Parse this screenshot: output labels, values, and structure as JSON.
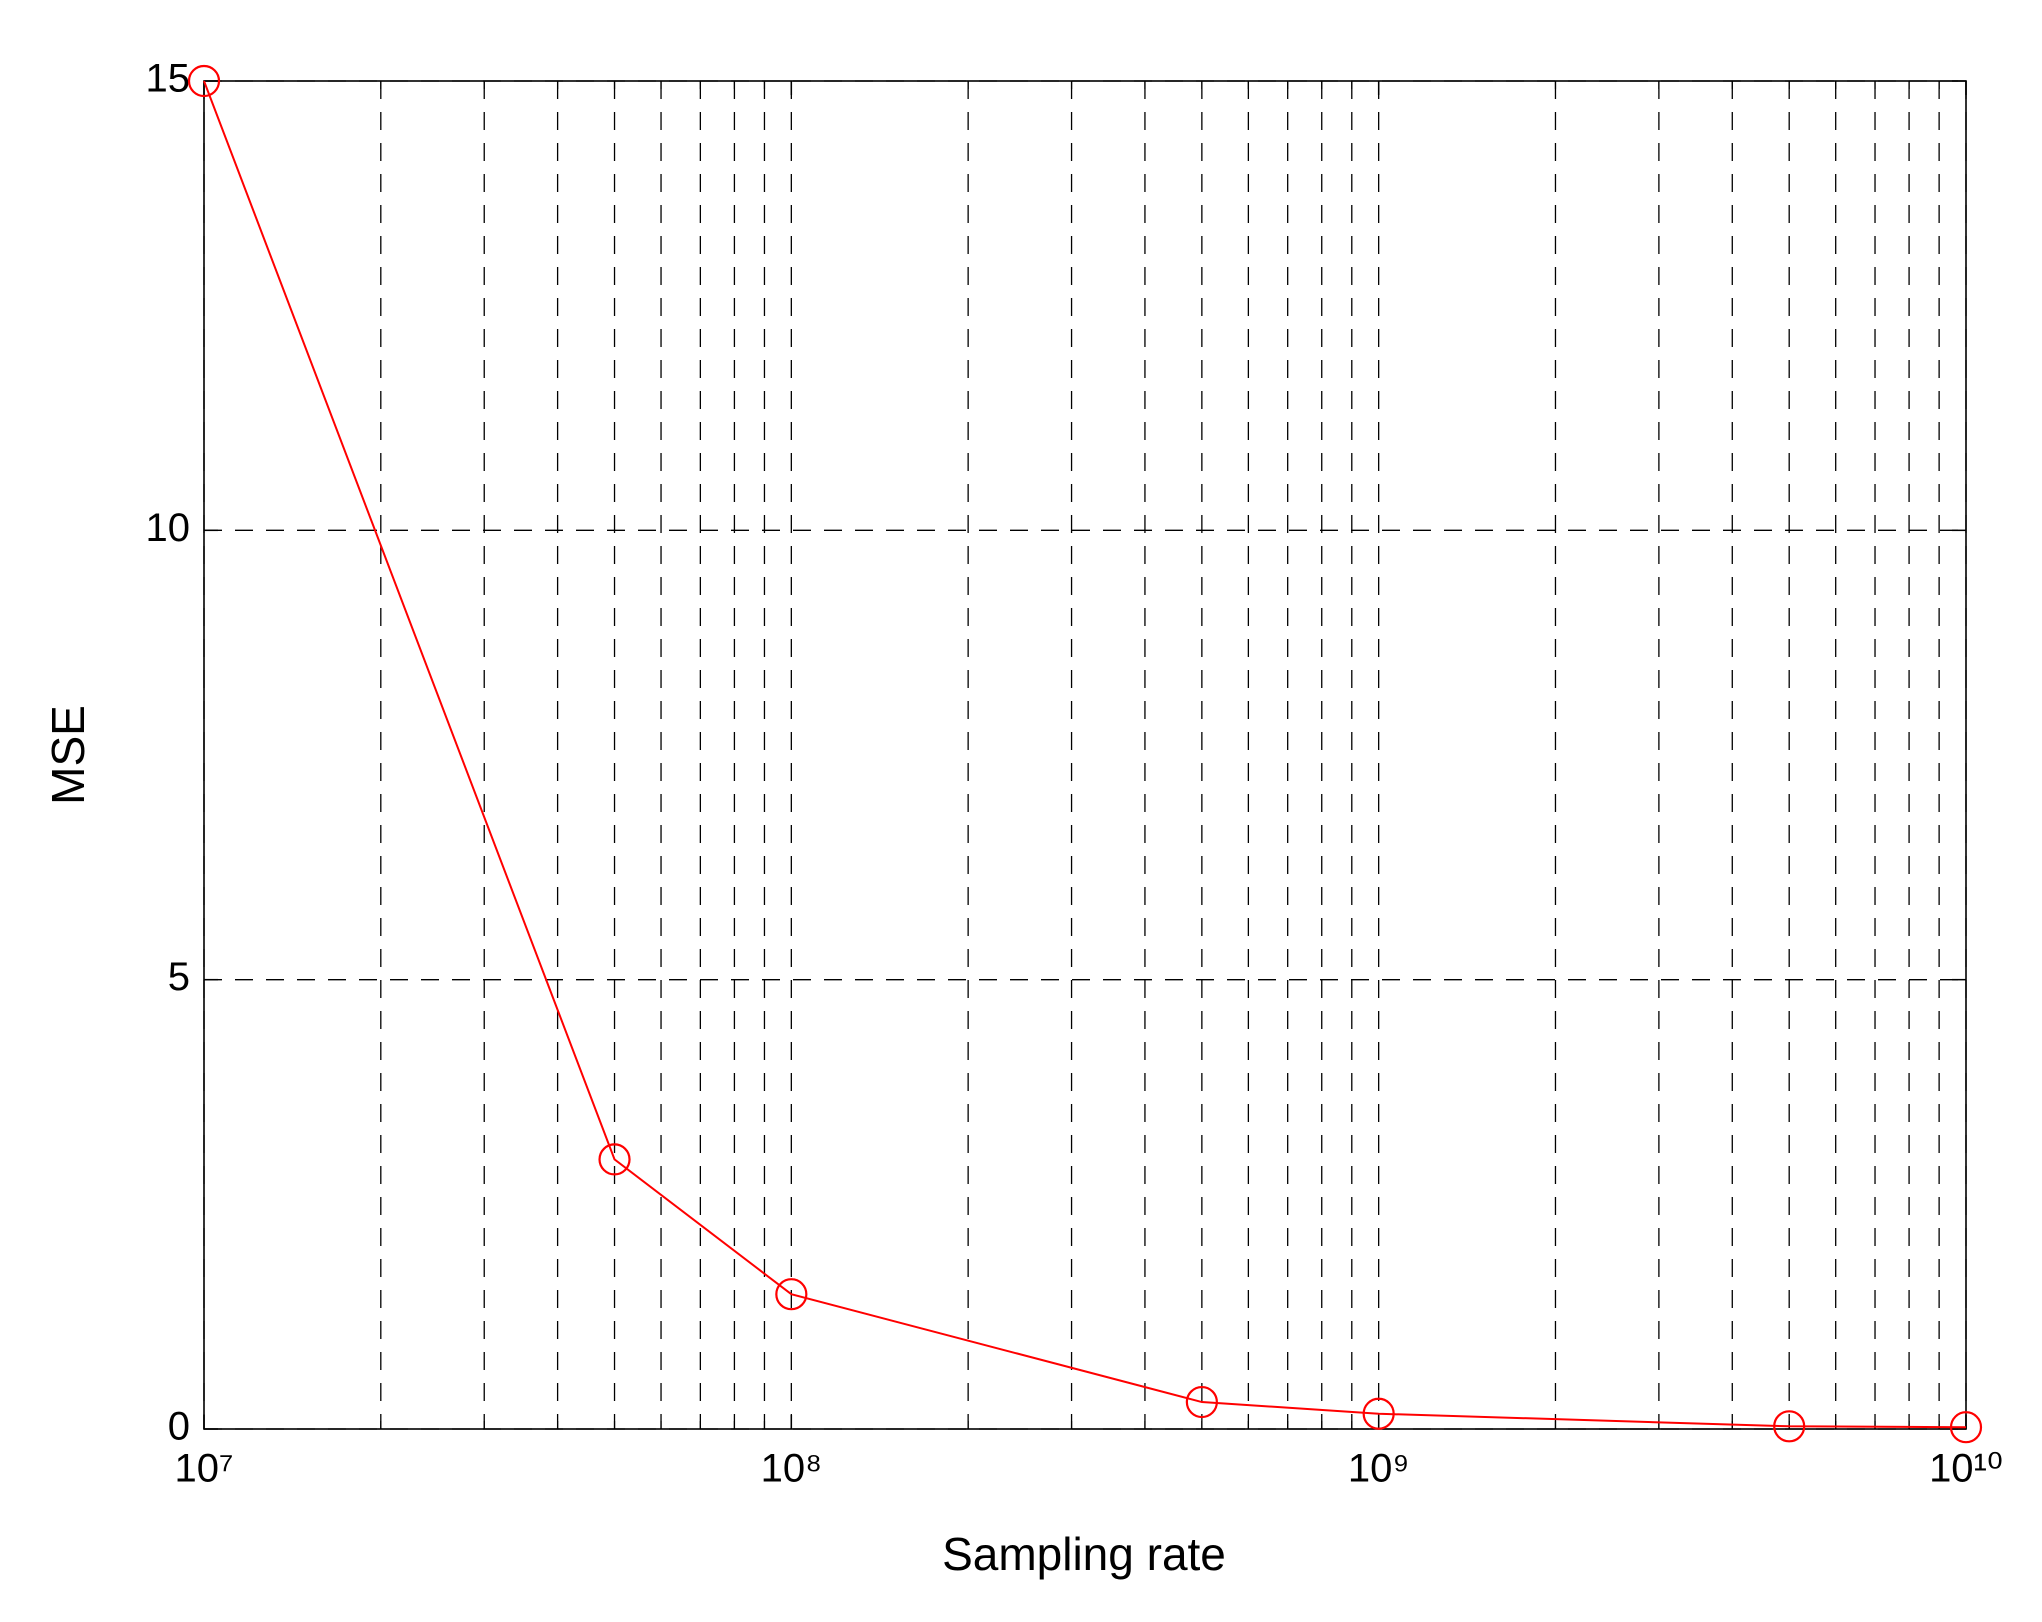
{
  "chart_data": {
    "type": "line",
    "xlabel": "Sampling rate",
    "ylabel": "MSE",
    "x": [
      10000000,
      50000000,
      100000000,
      500000000,
      1000000000,
      5000000000,
      10000000000
    ],
    "series": [
      {
        "name": "MSE",
        "color": "#ff0000",
        "values": [
          15,
          3,
          1.5,
          0.3,
          0.17,
          0.03,
          0.02
        ]
      }
    ],
    "xlim": [
      10000000,
      10000000000
    ],
    "xticks": [
      {
        "value": 10000000,
        "label": "10⁷"
      },
      {
        "value": 100000000,
        "label": "10⁸"
      },
      {
        "value": 1000000000,
        "label": "10⁹"
      },
      {
        "value": 10000000000,
        "label": "10¹⁰"
      }
    ],
    "ylim": [
      0,
      15
    ],
    "yticks": [
      0,
      5,
      10,
      15
    ],
    "xscale": "log",
    "grid": true,
    "minor_grid": true,
    "marker": "circle"
  }
}
